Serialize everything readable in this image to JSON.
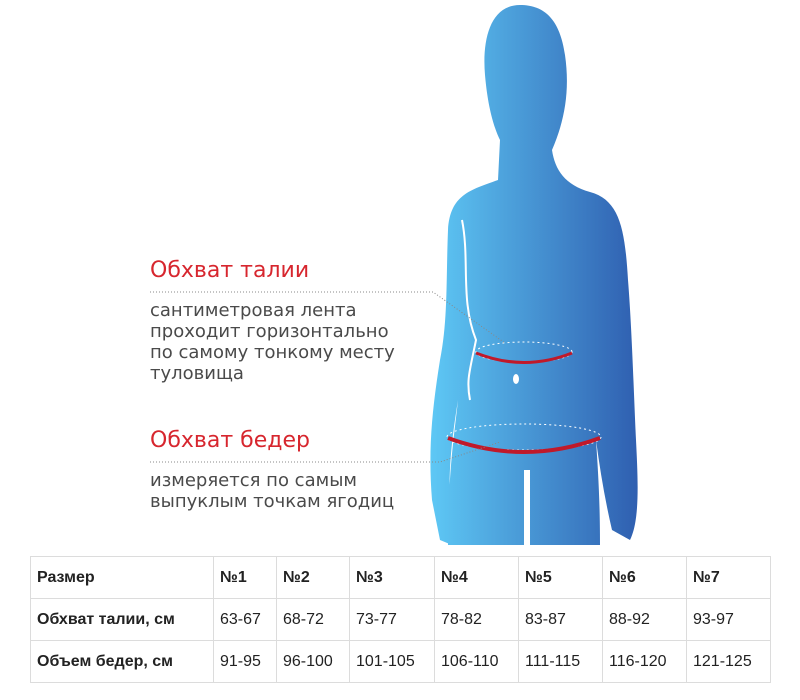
{
  "waist": {
    "title": "Обхват талии",
    "lines": [
      "сантиметровая лента",
      "проходит горизонтально",
      "по самому тонкому месту",
      "туловища"
    ]
  },
  "hips": {
    "title": "Обхват бедер",
    "lines": [
      "измеряется по самым",
      "выпуклым точкам ягодиц"
    ]
  },
  "colors": {
    "accent": "#d7262e",
    "body_light": "#5ec8f5",
    "body_dark": "#2f5fb0"
  },
  "table": {
    "header": [
      "Размер",
      "№1",
      "№2",
      "№3",
      "№4",
      "№5",
      "№6",
      "№7"
    ],
    "rows": [
      [
        "Обхват талии, см",
        "63-67",
        "68-72",
        "73-77",
        "78-82",
        "83-87",
        "88-92",
        "93-97"
      ],
      [
        "Объем бедер, см",
        "91-95",
        "96-100",
        "101-105",
        "106-110",
        "111-115",
        "116-120",
        "121-125"
      ]
    ]
  }
}
